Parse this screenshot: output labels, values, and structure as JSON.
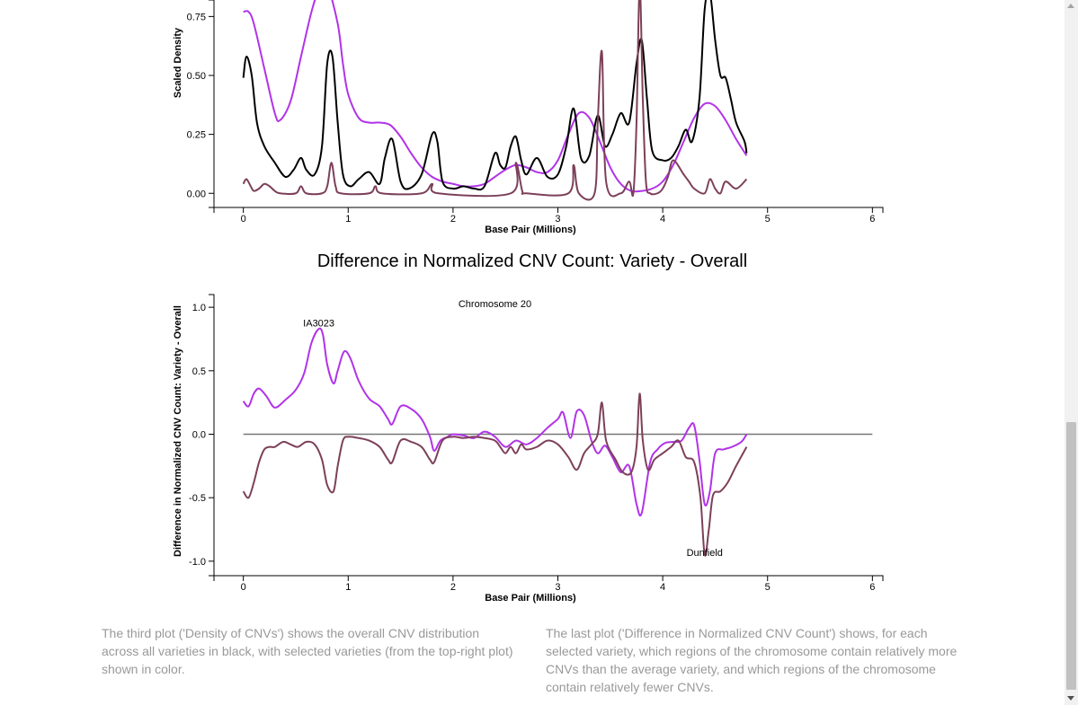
{
  "colors": {
    "overall": "#000000",
    "variety_a": "#b133e8",
    "variety_b": "#7c4059",
    "zero_line": "#777777"
  },
  "section_title": "Difference in Normalized CNV Count: Variety - Overall",
  "captions": {
    "left": "The third plot ('Density of CNVs') shows the overall CNV distribution across all varieties in black, with selected varieties (from the top-right plot) shown in color.",
    "right": "The last plot ('Difference in Normalized CNV Count') shows, for each selected variety, which regions of the chromosome contain relatively more CNVs than the average variety, and which regions of the chromosome contain relatively fewer CNVs."
  },
  "chart_data": [
    {
      "type": "line",
      "xlabel": "Base Pair (Millions)",
      "ylabel": "Scaled Density",
      "xlim": [
        -0.28,
        6.1
      ],
      "ylim": [
        -0.06,
        0.82
      ],
      "x_ticks": [
        "0",
        "1",
        "2",
        "3",
        "4",
        "5",
        "6"
      ],
      "y_ticks": [
        "0.00",
        "0.25",
        "0.50",
        "0.75"
      ],
      "series": [
        {
          "key": "variety_a",
          "x": [
            0.0,
            0.05,
            0.1,
            0.2,
            0.3,
            0.35,
            0.45,
            0.55,
            0.65,
            0.72,
            0.8,
            0.9,
            0.95,
            1.0,
            1.1,
            1.2,
            1.3,
            1.4,
            1.5,
            1.6,
            1.7,
            1.8,
            1.9,
            2.0,
            2.1,
            2.2,
            2.3,
            2.4,
            2.5,
            2.6,
            2.7,
            2.8,
            2.9,
            3.0,
            3.1,
            3.2,
            3.3,
            3.4,
            3.5,
            3.6,
            3.7,
            3.8,
            3.9,
            4.0,
            4.1,
            4.2,
            4.3,
            4.4,
            4.5,
            4.6,
            4.7,
            4.8
          ],
          "y": [
            0.77,
            0.77,
            0.72,
            0.53,
            0.34,
            0.31,
            0.39,
            0.58,
            0.77,
            0.86,
            0.88,
            0.72,
            0.55,
            0.42,
            0.32,
            0.3,
            0.3,
            0.29,
            0.24,
            0.17,
            0.11,
            0.07,
            0.05,
            0.04,
            0.03,
            0.03,
            0.04,
            0.07,
            0.1,
            0.12,
            0.11,
            0.09,
            0.09,
            0.14,
            0.25,
            0.34,
            0.32,
            0.22,
            0.11,
            0.04,
            0.01,
            0.01,
            0.02,
            0.05,
            0.12,
            0.22,
            0.32,
            0.38,
            0.37,
            0.31,
            0.23,
            0.16
          ]
        },
        {
          "key": "overall",
          "x": [
            0.0,
            0.03,
            0.08,
            0.13,
            0.2,
            0.3,
            0.4,
            0.48,
            0.55,
            0.6,
            0.68,
            0.75,
            0.8,
            0.85,
            0.9,
            0.95,
            1.02,
            1.1,
            1.2,
            1.3,
            1.35,
            1.42,
            1.5,
            1.58,
            1.7,
            1.8,
            1.85,
            1.9,
            2.0,
            2.1,
            2.2,
            2.3,
            2.4,
            2.45,
            2.5,
            2.55,
            2.6,
            2.65,
            2.7,
            2.8,
            2.9,
            3.0,
            3.08,
            3.15,
            3.22,
            3.3,
            3.38,
            3.45,
            3.52,
            3.6,
            3.68,
            3.75,
            3.8,
            3.85,
            3.9,
            4.0,
            4.08,
            4.15,
            4.22,
            4.28,
            4.35,
            4.4,
            4.45,
            4.5,
            4.55,
            4.6,
            4.65,
            4.7,
            4.78,
            4.8
          ],
          "y": [
            0.49,
            0.58,
            0.5,
            0.3,
            0.2,
            0.13,
            0.07,
            0.1,
            0.15,
            0.1,
            0.08,
            0.2,
            0.55,
            0.58,
            0.3,
            0.08,
            0.03,
            0.06,
            0.09,
            0.04,
            0.15,
            0.23,
            0.05,
            0.02,
            0.08,
            0.25,
            0.22,
            0.05,
            0.02,
            0.03,
            0.02,
            0.03,
            0.17,
            0.12,
            0.11,
            0.2,
            0.24,
            0.14,
            0.08,
            0.15,
            0.07,
            0.08,
            0.2,
            0.36,
            0.15,
            0.16,
            0.33,
            0.2,
            0.25,
            0.34,
            0.3,
            0.55,
            0.65,
            0.4,
            0.18,
            0.14,
            0.15,
            0.2,
            0.27,
            0.22,
            0.4,
            0.78,
            0.85,
            0.65,
            0.5,
            0.49,
            0.4,
            0.3,
            0.22,
            0.17
          ]
        },
        {
          "key": "variety_b",
          "x": [
            0.0,
            0.03,
            0.07,
            0.1,
            0.15,
            0.2,
            0.25,
            0.3,
            0.35,
            0.5,
            0.55,
            0.6,
            0.75,
            0.8,
            0.84,
            0.88,
            0.93,
            1.2,
            1.26,
            1.32,
            1.7,
            1.8,
            1.86,
            2.55,
            2.6,
            2.66,
            2.7,
            3.1,
            3.15,
            3.2,
            3.35,
            3.38,
            3.42,
            3.46,
            3.6,
            3.68,
            3.72,
            3.75,
            3.78,
            3.81,
            3.84,
            3.88,
            3.95,
            4.0,
            4.05,
            4.1,
            4.2,
            4.25,
            4.3,
            4.4,
            4.45,
            4.5,
            4.55,
            4.6,
            4.7,
            4.8
          ],
          "y": [
            0.04,
            0.06,
            0.03,
            0.01,
            0.02,
            0.04,
            0.03,
            0.01,
            0.0,
            0.0,
            0.03,
            0.0,
            0.0,
            0.03,
            0.13,
            0.03,
            0.0,
            0.0,
            0.03,
            0.0,
            0.0,
            0.04,
            0.0,
            0.0,
            0.13,
            0.01,
            0.0,
            0.0,
            0.12,
            0.0,
            0.0,
            0.3,
            0.6,
            0.05,
            0.0,
            0.05,
            0.0,
            0.3,
            0.88,
            0.4,
            0.05,
            0.0,
            0.0,
            0.02,
            0.07,
            0.14,
            0.08,
            0.05,
            0.02,
            0.0,
            0.06,
            0.02,
            0.0,
            0.05,
            0.02,
            0.06
          ]
        }
      ]
    },
    {
      "type": "line",
      "xlabel": "Base Pair (Millions)",
      "ylabel": "Difference in Normalized CNV Count: Variety - Overall",
      "xlim": [
        -0.28,
        6.1
      ],
      "ylim": [
        -1.1,
        1.1
      ],
      "x_ticks": [
        "0",
        "1",
        "2",
        "3",
        "4",
        "5",
        "6"
      ],
      "y_ticks": [
        "1.0",
        "0.5",
        "0.0",
        "-0.5",
        "-1.0"
      ],
      "zero_line": true,
      "annotations": [
        {
          "text": "Chromosome 20",
          "x": 2.4,
          "y": 1.0
        },
        {
          "text": "IA3023",
          "x": 0.72,
          "y": 0.85
        },
        {
          "text": "Dunfield",
          "x": 4.4,
          "y": -0.96
        }
      ],
      "series": [
        {
          "key": "variety_a",
          "x": [
            0.0,
            0.05,
            0.1,
            0.15,
            0.22,
            0.3,
            0.4,
            0.5,
            0.58,
            0.65,
            0.72,
            0.76,
            0.8,
            0.86,
            0.9,
            0.96,
            1.02,
            1.1,
            1.2,
            1.3,
            1.38,
            1.42,
            1.5,
            1.6,
            1.7,
            1.78,
            1.82,
            1.88,
            1.95,
            2.0,
            2.1,
            2.2,
            2.3,
            2.4,
            2.5,
            2.6,
            2.7,
            2.8,
            2.9,
            3.0,
            3.05,
            3.12,
            3.18,
            3.25,
            3.32,
            3.38,
            3.45,
            3.52,
            3.6,
            3.68,
            3.75,
            3.8,
            3.88,
            3.95,
            4.02,
            4.1,
            4.18,
            4.25,
            4.3,
            4.35,
            4.4,
            4.45,
            4.5,
            4.58,
            4.66,
            4.75,
            4.8
          ],
          "y": [
            0.26,
            0.22,
            0.32,
            0.36,
            0.3,
            0.21,
            0.27,
            0.35,
            0.48,
            0.72,
            0.83,
            0.78,
            0.55,
            0.4,
            0.5,
            0.65,
            0.6,
            0.42,
            0.28,
            0.22,
            0.12,
            0.08,
            0.22,
            0.2,
            0.12,
            -0.02,
            -0.13,
            -0.05,
            -0.02,
            0.0,
            -0.01,
            -0.03,
            0.02,
            -0.02,
            -0.1,
            -0.05,
            -0.08,
            -0.03,
            0.05,
            0.12,
            0.17,
            -0.03,
            0.18,
            0.15,
            -0.05,
            -0.15,
            -0.09,
            -0.18,
            -0.3,
            -0.25,
            -0.55,
            -0.62,
            -0.22,
            -0.12,
            -0.07,
            -0.06,
            -0.05,
            0.05,
            0.07,
            -0.2,
            -0.55,
            -0.45,
            -0.15,
            -0.12,
            -0.1,
            -0.06,
            0.0
          ]
        },
        {
          "key": "variety_b",
          "x": [
            0.0,
            0.05,
            0.1,
            0.15,
            0.2,
            0.25,
            0.3,
            0.38,
            0.45,
            0.52,
            0.6,
            0.68,
            0.75,
            0.8,
            0.86,
            0.9,
            0.95,
            1.0,
            1.1,
            1.2,
            1.3,
            1.38,
            1.42,
            1.5,
            1.6,
            1.7,
            1.78,
            1.82,
            1.9,
            2.0,
            2.1,
            2.2,
            2.3,
            2.4,
            2.45,
            2.5,
            2.55,
            2.6,
            2.65,
            2.7,
            2.8,
            2.9,
            3.0,
            3.1,
            3.18,
            3.25,
            3.32,
            3.38,
            3.42,
            3.46,
            3.55,
            3.62,
            3.7,
            3.75,
            3.78,
            3.81,
            3.86,
            3.92,
            4.0,
            4.08,
            4.15,
            4.22,
            4.3,
            4.36,
            4.4,
            4.44,
            4.48,
            4.55,
            4.62,
            4.7,
            4.8
          ],
          "y": [
            -0.45,
            -0.5,
            -0.38,
            -0.22,
            -0.12,
            -0.1,
            -0.1,
            -0.06,
            -0.08,
            -0.1,
            -0.06,
            -0.08,
            -0.2,
            -0.4,
            -0.45,
            -0.25,
            -0.05,
            -0.02,
            -0.03,
            -0.05,
            -0.1,
            -0.2,
            -0.22,
            -0.05,
            -0.06,
            -0.1,
            -0.2,
            -0.22,
            -0.05,
            -0.02,
            -0.03,
            -0.02,
            -0.03,
            -0.05,
            -0.1,
            -0.15,
            -0.1,
            -0.15,
            -0.08,
            -0.12,
            -0.1,
            -0.05,
            -0.08,
            -0.18,
            -0.28,
            -0.15,
            -0.08,
            0.0,
            0.25,
            -0.05,
            -0.2,
            -0.3,
            -0.3,
            -0.1,
            0.32,
            -0.05,
            -0.28,
            -0.2,
            -0.15,
            -0.1,
            -0.05,
            -0.18,
            -0.22,
            -0.5,
            -0.95,
            -0.75,
            -0.48,
            -0.45,
            -0.38,
            -0.25,
            -0.1
          ]
        }
      ]
    }
  ]
}
